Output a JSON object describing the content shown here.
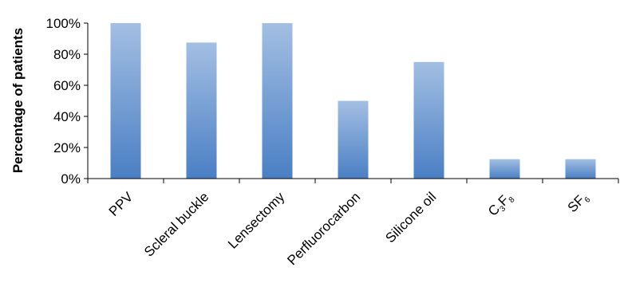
{
  "chart_data": {
    "type": "bar",
    "title": "",
    "xlabel": "",
    "ylabel": "Percentage of patients",
    "ylim": [
      0,
      100
    ],
    "yticks": [
      "0%",
      "20%",
      "40%",
      "60%",
      "80%",
      "100%"
    ],
    "ytick_values": [
      0,
      20,
      40,
      60,
      80,
      100
    ],
    "categories": [
      {
        "base": "PPV",
        "sub1": "",
        "mid": "",
        "sub2": ""
      },
      {
        "base": "Scleral buckle",
        "sub1": "",
        "mid": "",
        "sub2": ""
      },
      {
        "base": "Lensectomy",
        "sub1": "",
        "mid": "",
        "sub2": ""
      },
      {
        "base": "Perfluorocarbon",
        "sub1": "",
        "mid": "",
        "sub2": ""
      },
      {
        "base": "Silicone oil",
        "sub1": "",
        "mid": "",
        "sub2": ""
      },
      {
        "base": "C",
        "sub1": "3",
        "mid": "F",
        "sub2": "8"
      },
      {
        "base": "SF",
        "sub1": "6",
        "mid": "",
        "sub2": ""
      }
    ],
    "values": [
      100,
      87.5,
      100,
      50,
      75,
      12.5,
      12.5
    ],
    "bar_color_top": "#a3bfe3",
    "bar_color_bottom": "#4a7fc4",
    "grid": false,
    "legend": "none"
  }
}
